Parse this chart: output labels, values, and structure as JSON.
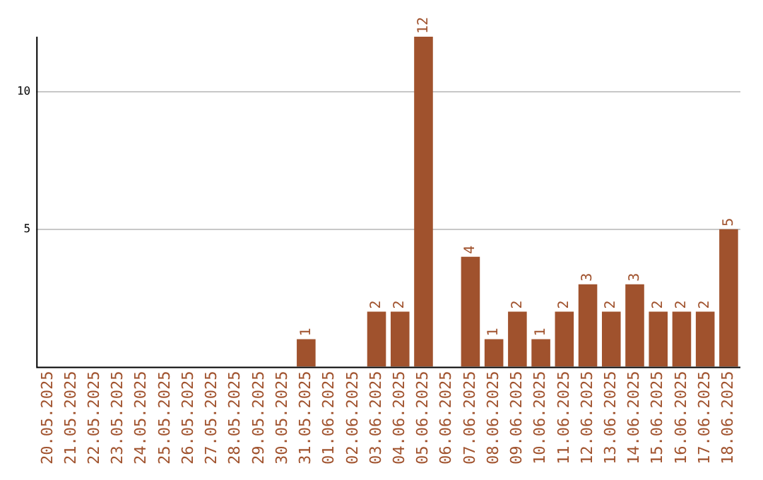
{
  "chart_data": {
    "type": "bar",
    "categories": [
      "20.05.2025",
      "21.05.2025",
      "22.05.2025",
      "23.05.2025",
      "24.05.2025",
      "25.05.2025",
      "26.05.2025",
      "27.05.2025",
      "28.05.2025",
      "29.05.2025",
      "30.05.2025",
      "31.05.2025",
      "01.06.2025",
      "02.06.2025",
      "03.06.2025",
      "04.06.2025",
      "05.06.2025",
      "06.06.2025",
      "07.06.2025",
      "08.06.2025",
      "09.06.2025",
      "10.06.2025",
      "11.06.2025",
      "12.06.2025",
      "13.06.2025",
      "14.06.2025",
      "15.06.2025",
      "16.06.2025",
      "17.06.2025",
      "18.06.2025"
    ],
    "values": [
      0,
      0,
      0,
      0,
      0,
      0,
      0,
      0,
      0,
      0,
      0,
      1,
      0,
      0,
      2,
      2,
      12,
      0,
      4,
      1,
      2,
      1,
      2,
      3,
      2,
      3,
      2,
      2,
      2,
      5
    ],
    "value_labels": [
      null,
      null,
      null,
      null,
      null,
      null,
      null,
      null,
      null,
      null,
      null,
      "1",
      null,
      null,
      "2",
      "2",
      "12",
      null,
      "4",
      "1",
      "2",
      "1",
      "2",
      "3",
      "2",
      "3",
      "2",
      "2",
      "2",
      "5"
    ],
    "color": "#a0522d",
    "ylim": [
      0,
      12
    ],
    "yticks": [
      5,
      10
    ],
    "grid": "y"
  }
}
